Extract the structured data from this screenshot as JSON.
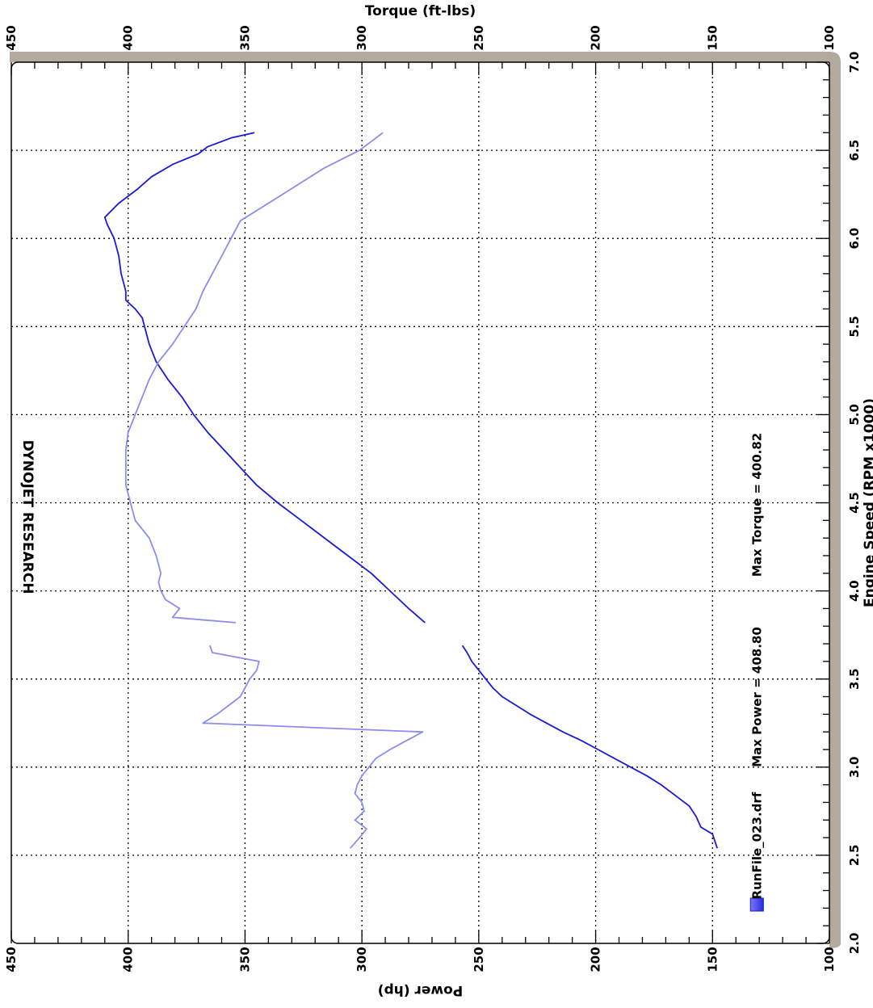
{
  "chart_data": {
    "type": "line",
    "title": "DYNOJET RESEARCH",
    "x_axis": {
      "label": "Engine Speed (RPM x1000)",
      "range": [
        2.0,
        7.0
      ],
      "ticks": [
        "2.0",
        "2.5",
        "3.0",
        "3.5",
        "4.0",
        "4.5",
        "5.0",
        "5.5",
        "6.0",
        "6.5",
        "7.0"
      ]
    },
    "y_left": {
      "label": "Power (hp)",
      "range": [
        100,
        450
      ],
      "ticks": [
        "100",
        "150",
        "200",
        "250",
        "300",
        "350",
        "400",
        "450"
      ]
    },
    "y_right": {
      "label": "Torque (ft-lbs)",
      "range": [
        100,
        450
      ],
      "ticks": [
        "100",
        "150",
        "200",
        "250",
        "300",
        "350",
        "400",
        "450"
      ]
    },
    "grid": true,
    "legend": {
      "file": "RunFile_023.drf",
      "max_power": "Max Power = 408.80",
      "max_torque": "Max Torque = 400.82"
    },
    "colors": {
      "power": "#1a1ad6",
      "torque": "#8c8cf0",
      "frame": "#b2ab9d",
      "legend_swatch": "#4a4af0"
    },
    "series": [
      {
        "name": "Power",
        "axis": "left",
        "segments": [
          [
            [
              2.54,
              148
            ],
            [
              2.58,
              149
            ],
            [
              2.62,
              150
            ],
            [
              2.66,
              155
            ],
            [
              2.72,
              157
            ],
            [
              2.78,
              160
            ],
            [
              2.84,
              166
            ],
            [
              2.9,
              172
            ],
            [
              2.95,
              178
            ],
            [
              3.0,
              185
            ],
            [
              3.05,
              192
            ],
            [
              3.1,
              199
            ],
            [
              3.15,
              206
            ],
            [
              3.2,
              214
            ],
            [
              3.25,
              221
            ],
            [
              3.3,
              228
            ],
            [
              3.35,
              234
            ],
            [
              3.4,
              240
            ],
            [
              3.45,
              244
            ],
            [
              3.5,
              247
            ],
            [
              3.55,
              250
            ],
            [
              3.6,
              253
            ],
            [
              3.65,
              255
            ],
            [
              3.69,
              257
            ]
          ],
          [
            [
              3.82,
              273
            ],
            [
              3.9,
              280
            ],
            [
              4.0,
              288
            ],
            [
              4.1,
              296
            ],
            [
              4.2,
              306
            ],
            [
              4.3,
              316
            ],
            [
              4.4,
              326
            ],
            [
              4.5,
              336
            ],
            [
              4.6,
              345
            ],
            [
              4.7,
              352
            ],
            [
              4.8,
              359
            ],
            [
              4.9,
              366
            ],
            [
              5.0,
              372
            ],
            [
              5.1,
              377
            ],
            [
              5.2,
              383
            ],
            [
              5.3,
              388
            ],
            [
              5.4,
              391
            ],
            [
              5.5,
              393
            ],
            [
              5.55,
              394
            ],
            [
              5.6,
              397
            ],
            [
              5.65,
              401
            ],
            [
              5.7,
              401
            ],
            [
              5.8,
              403
            ],
            [
              5.9,
              404
            ],
            [
              6.0,
              406
            ],
            [
              6.08,
              409
            ],
            [
              6.12,
              410
            ],
            [
              6.2,
              404
            ],
            [
              6.28,
              396
            ],
            [
              6.35,
              390
            ],
            [
              6.42,
              381
            ],
            [
              6.48,
              370
            ],
            [
              6.52,
              366
            ],
            [
              6.57,
              356
            ],
            [
              6.6,
              346
            ]
          ]
        ]
      },
      {
        "name": "Torque",
        "axis": "right",
        "segments": [
          [
            [
              2.54,
              305
            ],
            [
              2.6,
              301
            ],
            [
              2.65,
              298
            ],
            [
              2.7,
              303
            ],
            [
              2.75,
              299
            ],
            [
              2.8,
              300
            ],
            [
              2.85,
              303
            ],
            [
              2.9,
              302
            ],
            [
              2.95,
              300
            ],
            [
              3.0,
              297
            ],
            [
              3.05,
              294
            ],
            [
              3.1,
              288
            ],
            [
              3.15,
              281
            ],
            [
              3.2,
              274
            ],
            [
              3.25,
              368
            ],
            [
              3.3,
              362
            ],
            [
              3.35,
              357
            ],
            [
              3.4,
              352
            ],
            [
              3.45,
              350
            ],
            [
              3.5,
              348
            ],
            [
              3.55,
              345
            ],
            [
              3.6,
              344
            ],
            [
              3.65,
              364
            ],
            [
              3.69,
              365
            ]
          ],
          [
            [
              3.82,
              354
            ],
            [
              3.85,
              381
            ],
            [
              3.9,
              378
            ],
            [
              3.95,
              384
            ],
            [
              4.0,
              386
            ],
            [
              4.05,
              387
            ],
            [
              4.1,
              386
            ],
            [
              4.2,
              388
            ],
            [
              4.3,
              391
            ],
            [
              4.4,
              397
            ],
            [
              4.5,
              399
            ],
            [
              4.6,
              401
            ],
            [
              4.7,
              401
            ],
            [
              4.8,
              401
            ],
            [
              4.9,
              400
            ],
            [
              5.0,
              397
            ],
            [
              5.1,
              394
            ],
            [
              5.2,
              391
            ],
            [
              5.3,
              387
            ],
            [
              5.4,
              381
            ],
            [
              5.5,
              376
            ],
            [
              5.6,
              371
            ],
            [
              5.7,
              368
            ],
            [
              5.8,
              364
            ],
            [
              5.9,
              360
            ],
            [
              6.0,
              356
            ],
            [
              6.1,
              352
            ],
            [
              6.2,
              340
            ],
            [
              6.3,
              328
            ],
            [
              6.4,
              316
            ],
            [
              6.5,
              301
            ],
            [
              6.55,
              296
            ],
            [
              6.6,
              291
            ]
          ]
        ]
      }
    ]
  }
}
